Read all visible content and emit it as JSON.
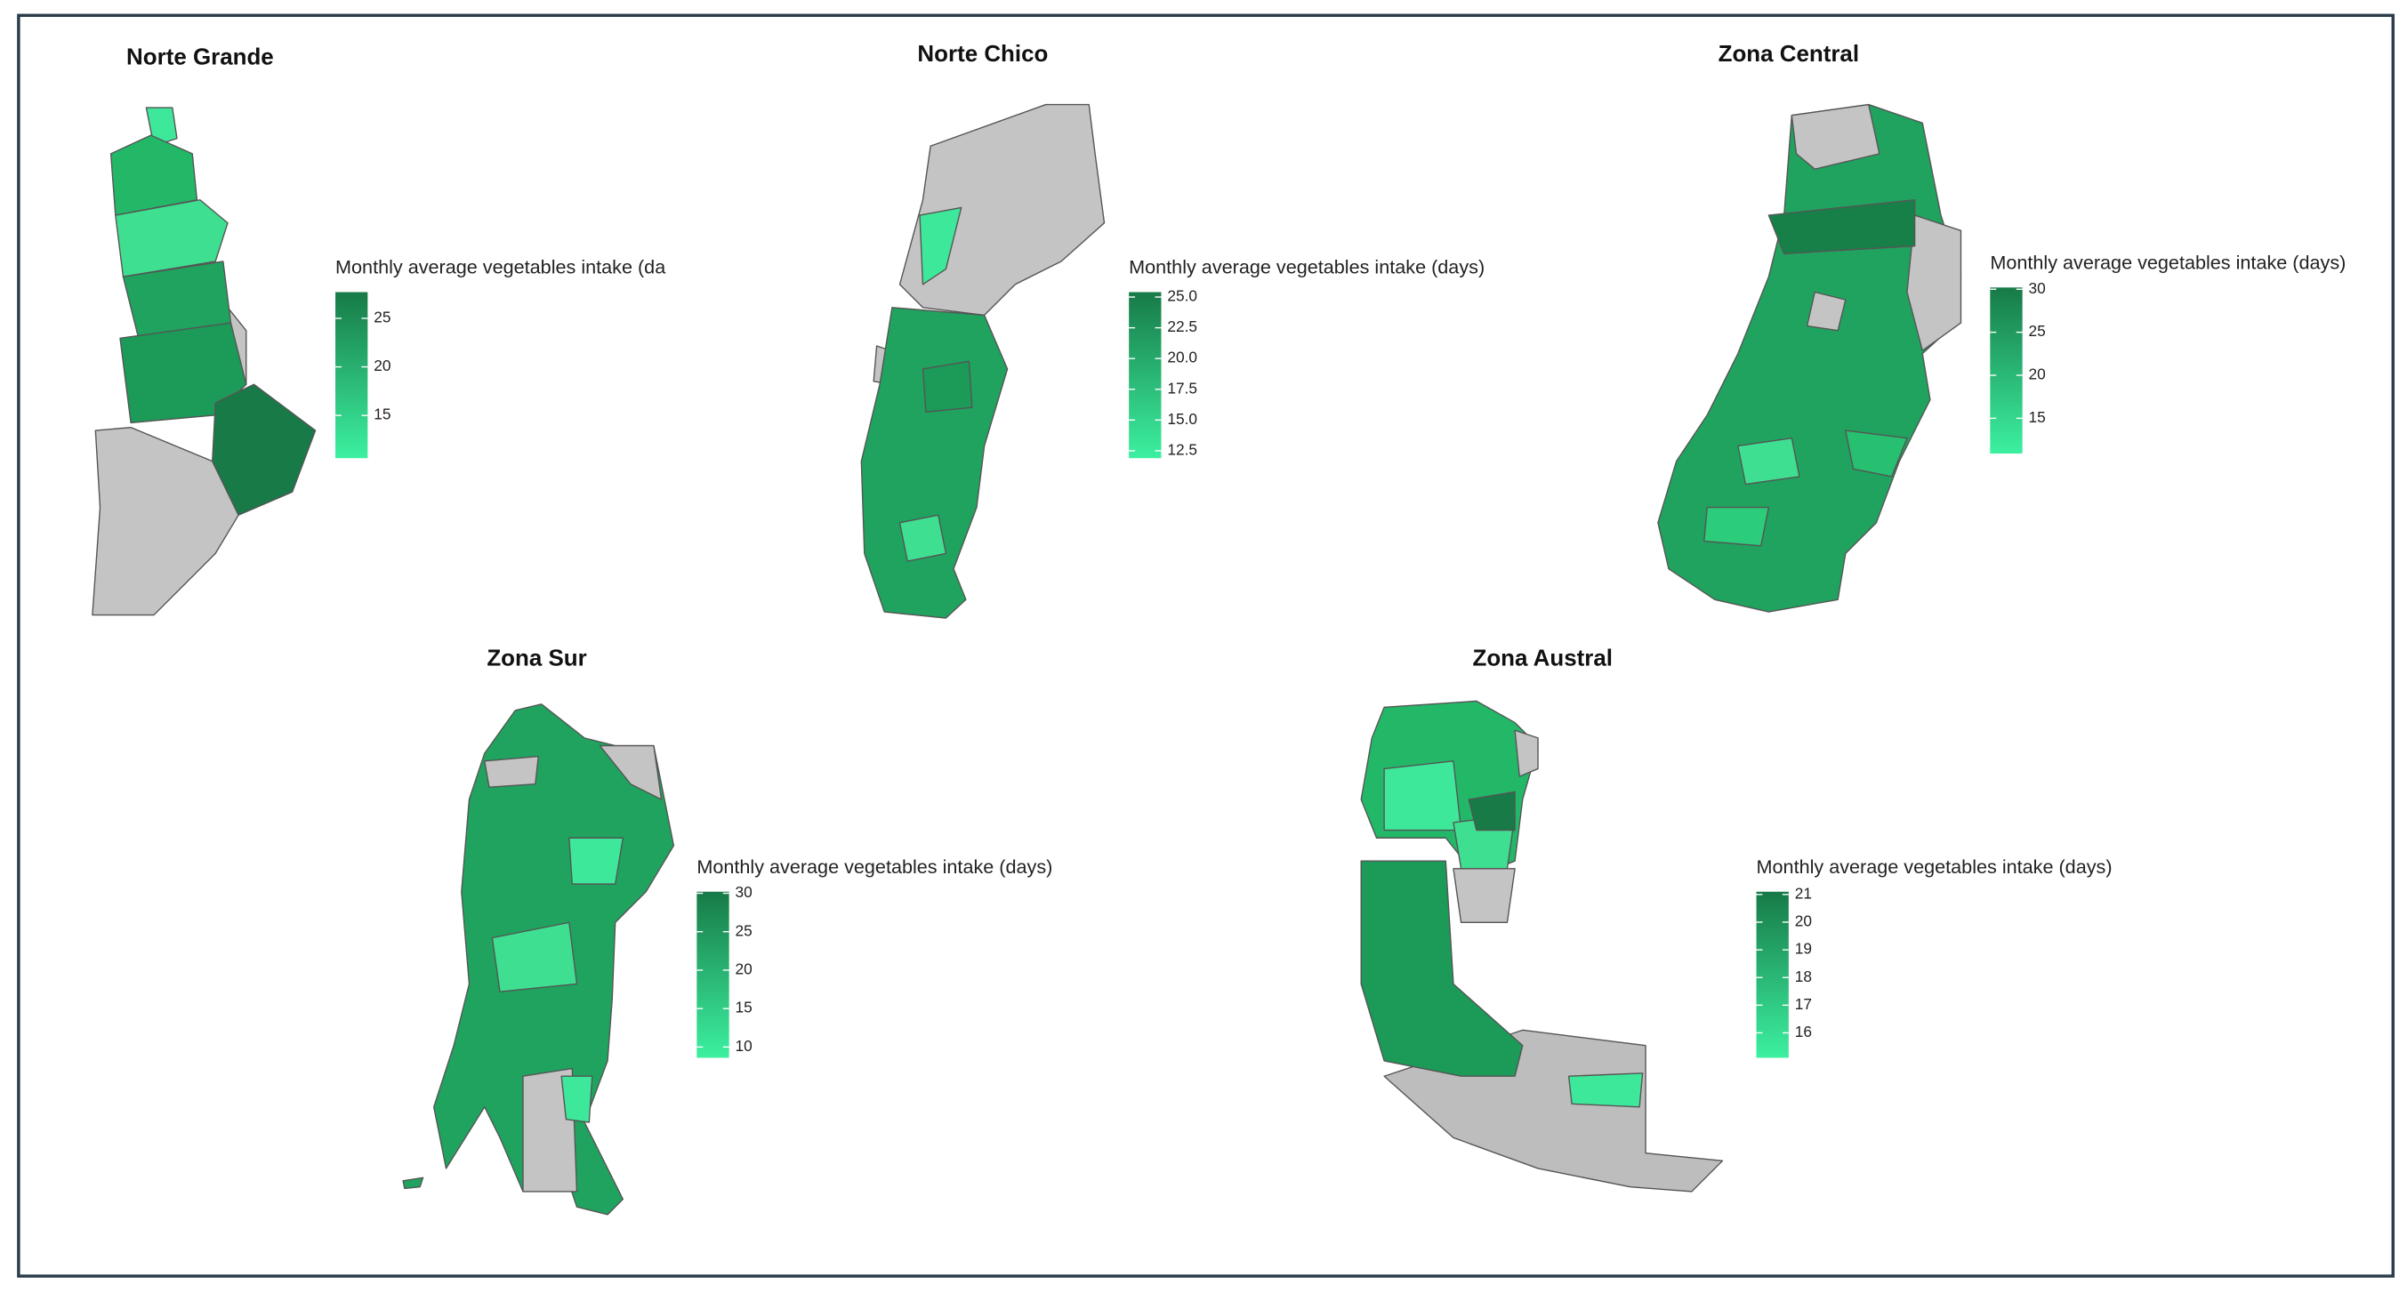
{
  "panels": [
    {
      "title": "Norte Grande",
      "legend": {
        "title": "Monthly average vegetables intake (da",
        "lim": [
          10.6,
          27.7
        ],
        "ticks": [
          25,
          20,
          15
        ],
        "colors": {
          "low": "#3cf0a0",
          "high": "#177a47"
        }
      }
    },
    {
      "title": "Norte Chico",
      "legend": {
        "title": "Monthly average vegetables intake (days)",
        "lim": [
          11.9,
          25.4
        ],
        "ticks": [
          {
            "value": 25,
            "label": "25.0"
          },
          {
            "value": 22.5,
            "label": "22.5"
          },
          {
            "value": 20,
            "label": "20.0"
          },
          {
            "value": 17.5,
            "label": "17.5"
          },
          {
            "value": 15,
            "label": "15.0"
          },
          {
            "value": 12.5,
            "label": "12.5"
          }
        ],
        "colors": {
          "low": "#3cf0a0",
          "high": "#177a47"
        }
      }
    },
    {
      "title": "Zona Central",
      "legend": {
        "title": "Monthly average vegetables intake (days)",
        "lim": [
          10.9,
          30.2
        ],
        "ticks": [
          30,
          25,
          20,
          15
        ],
        "colors": {
          "low": "#3cf0a0",
          "high": "#177a47"
        }
      }
    },
    {
      "title": "Zona Sur",
      "legend": {
        "title": "Monthly average vegetables intake (days)",
        "lim": [
          8.6,
          30.2
        ],
        "ticks": [
          30,
          25,
          20,
          15,
          10
        ],
        "colors": {
          "low": "#3cf0a0",
          "high": "#177a47"
        }
      }
    },
    {
      "title": "Zona Austral",
      "legend": {
        "title": "Monthly average vegetables intake (days)",
        "lim": [
          15.1,
          21.1
        ],
        "ticks": [
          21,
          20,
          19,
          18,
          17,
          16
        ],
        "colors": {
          "low": "#3cf0a0",
          "high": "#177a47"
        }
      }
    }
  ]
}
